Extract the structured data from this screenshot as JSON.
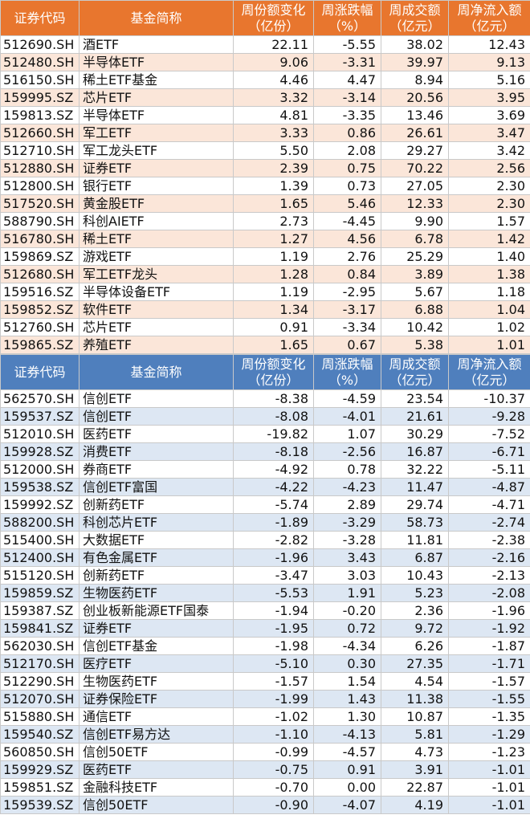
{
  "headers": {
    "code": "证券代码",
    "name": "基金简称",
    "share_change": [
      "周份额变化",
      "（亿份）"
    ],
    "pct_change": [
      "周涨跌幅",
      "（%）"
    ],
    "turnover": [
      "周成交额",
      "（亿元）"
    ],
    "net_flow": [
      "周净流入额",
      "（亿元）"
    ]
  },
  "inflow_rows": [
    [
      "512690.SH",
      "酒ETF",
      "22.11",
      "-5.55",
      "38.02",
      "12.43"
    ],
    [
      "512480.SH",
      "半导体ETF",
      "9.06",
      "-3.31",
      "39.97",
      "9.13"
    ],
    [
      "516150.SH",
      "稀土ETF基金",
      "4.46",
      "4.47",
      "8.94",
      "5.16"
    ],
    [
      "159995.SZ",
      "芯片ETF",
      "3.32",
      "-3.14",
      "20.56",
      "3.95"
    ],
    [
      "159813.SZ",
      "半导体ETF",
      "4.81",
      "-3.35",
      "13.46",
      "3.69"
    ],
    [
      "512660.SH",
      "军工ETF",
      "3.33",
      "0.86",
      "26.61",
      "3.47"
    ],
    [
      "512710.SH",
      "军工龙头ETF",
      "5.50",
      "2.08",
      "29.27",
      "3.42"
    ],
    [
      "512880.SH",
      "证券ETF",
      "2.39",
      "0.75",
      "70.22",
      "2.56"
    ],
    [
      "512800.SH",
      "银行ETF",
      "1.39",
      "0.73",
      "27.05",
      "2.30"
    ],
    [
      "517520.SH",
      "黄金股ETF",
      "1.65",
      "5.46",
      "12.33",
      "2.30"
    ],
    [
      "588790.SH",
      "科创AIETF",
      "2.73",
      "-4.45",
      "9.90",
      "1.57"
    ],
    [
      "516780.SH",
      "稀土ETF",
      "1.27",
      "4.56",
      "6.78",
      "1.42"
    ],
    [
      "159869.SZ",
      "游戏ETF",
      "1.19",
      "2.76",
      "25.29",
      "1.40"
    ],
    [
      "512680.SH",
      "军工ETF龙头",
      "1.28",
      "0.84",
      "3.89",
      "1.38"
    ],
    [
      "159516.SZ",
      "半导体设备ETF",
      "1.19",
      "-2.95",
      "5.67",
      "1.18"
    ],
    [
      "159852.SZ",
      "软件ETF",
      "1.34",
      "-3.17",
      "6.88",
      "1.04"
    ],
    [
      "512760.SH",
      "芯片ETF",
      "0.91",
      "-3.34",
      "10.42",
      "1.02"
    ],
    [
      "159865.SZ",
      "养殖ETF",
      "1.65",
      "0.67",
      "5.38",
      "1.01"
    ]
  ],
  "outflow_rows": [
    [
      "562570.SH",
      "信创ETF",
      "-8.38",
      "-4.59",
      "23.54",
      "-10.37"
    ],
    [
      "159537.SZ",
      "信创ETF",
      "-8.08",
      "-4.01",
      "21.61",
      "-9.28"
    ],
    [
      "512010.SH",
      "医药ETF",
      "-19.82",
      "1.07",
      "30.29",
      "-7.52"
    ],
    [
      "159928.SZ",
      "消费ETF",
      "-8.18",
      "-2.56",
      "16.87",
      "-6.71"
    ],
    [
      "512000.SH",
      "券商ETF",
      "-4.92",
      "0.78",
      "32.22",
      "-5.11"
    ],
    [
      "159538.SZ",
      "信创ETF富国",
      "-4.22",
      "-4.23",
      "11.47",
      "-4.87"
    ],
    [
      "159992.SZ",
      "创新药ETF",
      "-5.74",
      "2.89",
      "29.74",
      "-4.71"
    ],
    [
      "588200.SH",
      "科创芯片ETF",
      "-1.89",
      "-3.29",
      "58.73",
      "-2.74"
    ],
    [
      "515400.SH",
      "大数据ETF",
      "-2.82",
      "-3.28",
      "11.81",
      "-2.38"
    ],
    [
      "512400.SH",
      "有色金属ETF",
      "-1.96",
      "3.43",
      "6.87",
      "-2.16"
    ],
    [
      "515120.SH",
      "创新药ETF",
      "-3.47",
      "3.03",
      "10.43",
      "-2.13"
    ],
    [
      "159859.SZ",
      "生物医药ETF",
      "-5.53",
      "1.91",
      "5.23",
      "-2.08"
    ],
    [
      "159387.SZ",
      "创业板新能源ETF国泰",
      "-1.94",
      "-0.20",
      "2.36",
      "-1.96"
    ],
    [
      "159841.SZ",
      "证券ETF",
      "-1.95",
      "0.72",
      "9.72",
      "-1.92"
    ],
    [
      "562030.SH",
      "信创ETF基金",
      "-1.98",
      "-4.34",
      "6.26",
      "-1.87"
    ],
    [
      "512170.SH",
      "医疗ETF",
      "-5.10",
      "0.30",
      "27.35",
      "-1.71"
    ],
    [
      "512290.SH",
      "生物医药ETF",
      "-1.57",
      "1.54",
      "4.54",
      "-1.57"
    ],
    [
      "512070.SH",
      "证券保险ETF",
      "-1.99",
      "1.43",
      "11.38",
      "-1.55"
    ],
    [
      "515880.SH",
      "通信ETF",
      "-1.02",
      "1.30",
      "10.87",
      "-1.35"
    ],
    [
      "159540.SZ",
      "信创ETF易方达",
      "-1.10",
      "-4.13",
      "5.81",
      "-1.29"
    ],
    [
      "560850.SH",
      "信创50ETF",
      "-0.99",
      "-4.57",
      "4.73",
      "-1.23"
    ],
    [
      "159929.SZ",
      "医药ETF",
      "-0.75",
      "0.91",
      "3.91",
      "-1.01"
    ],
    [
      "159851.SZ",
      "金融科技ETF",
      "-0.70",
      "0.00",
      "22.87",
      "-1.01"
    ],
    [
      "159539.SZ",
      "信创50ETF",
      "-0.90",
      "-4.07",
      "4.19",
      "-1.01"
    ]
  ],
  "colors": {
    "inflow_header": "#e8762e",
    "inflow_stripe": "#fbe6d9",
    "outflow_header": "#4f7fbd",
    "outflow_stripe": "#dde7f3"
  }
}
